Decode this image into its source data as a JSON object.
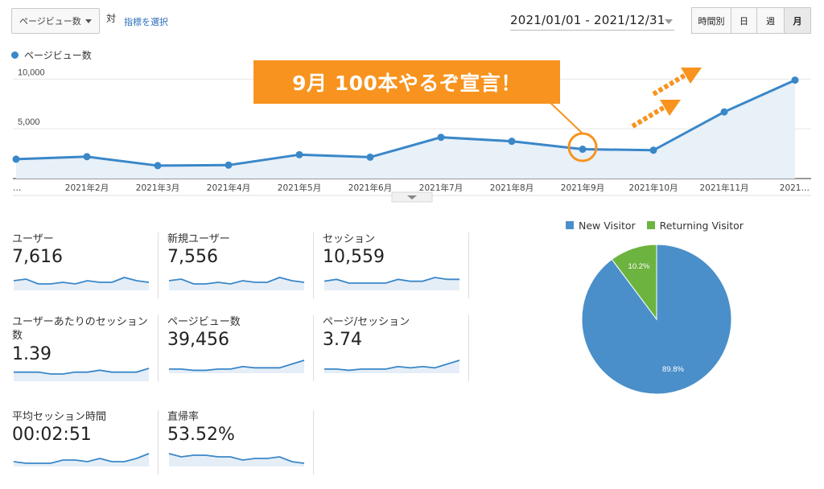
{
  "toolbar": {
    "metric_select": "ページビュー数",
    "vs_label": "対",
    "select_metric_link": "指標を選択",
    "date_range": "2021/01/01 - 2021/12/31",
    "granularity": [
      {
        "label": "時間別",
        "active": false
      },
      {
        "label": "日",
        "active": false
      },
      {
        "label": "週",
        "active": false
      },
      {
        "label": "月",
        "active": true
      }
    ]
  },
  "chart_legend": "ページビュー数",
  "annotation": "9月 100本やるぞ宣言！",
  "colors": {
    "line": "#3a87c8",
    "annotation_orange": "#f7931e",
    "new_visitor": "#4a8fc9",
    "returning_visitor": "#6db33f"
  },
  "chart_data": {
    "type": "line",
    "x": [
      "…",
      "2021年2月",
      "2021年3月",
      "2021年4月",
      "2021年5月",
      "2021年6月",
      "2021年7月",
      "2021年8月",
      "2021年9月",
      "2021年10月",
      "2021年11月",
      "2021…"
    ],
    "values": [
      1950,
      2200,
      1300,
      1350,
      2400,
      2150,
      4150,
      3750,
      2950,
      2850,
      6700,
      9900
    ],
    "yticks": [
      "10,000",
      "5,000"
    ],
    "ylim": [
      0,
      11000
    ],
    "grid": true
  },
  "cards": [
    {
      "title": "ユーザー",
      "value": "7,616",
      "spark": [
        5,
        6,
        3,
        3,
        4,
        3,
        5,
        4,
        4,
        7,
        5,
        4
      ]
    },
    {
      "title": "新規ユーザー",
      "value": "7,556",
      "spark": [
        5,
        6,
        3,
        3,
        4,
        3,
        5,
        4,
        4,
        7,
        5,
        4
      ]
    },
    {
      "title": "セッション",
      "value": "10,559",
      "spark": [
        4,
        5,
        3,
        3,
        3,
        3,
        5,
        4,
        4,
        6,
        5,
        5
      ]
    },
    {
      "title": "ユーザーあたりのセッション数",
      "value": "1.39",
      "spark": [
        4,
        4,
        4,
        3,
        3,
        4,
        4,
        5,
        4,
        4,
        4,
        6
      ]
    },
    {
      "title": "ページビュー数",
      "value": "39,456",
      "spark": [
        2,
        2,
        1,
        1,
        2,
        2,
        4,
        3,
        3,
        3,
        6,
        9
      ]
    },
    {
      "title": "ページ/セッション",
      "value": "3.74",
      "spark": [
        2,
        2,
        1,
        2,
        2,
        2,
        4,
        3,
        4,
        3,
        6,
        9
      ]
    },
    {
      "title": "平均セッション時間",
      "value": "00:02:51",
      "spark": [
        2,
        1,
        1,
        1,
        3,
        3,
        2,
        4,
        2,
        2,
        4,
        7
      ]
    },
    {
      "title": "直帰率",
      "value": "53.52%",
      "spark": [
        7,
        5,
        6,
        6,
        5,
        5,
        3,
        4,
        4,
        5,
        2,
        1
      ]
    }
  ],
  "pie": {
    "legend": [
      {
        "label": "New Visitor"
      },
      {
        "label": "Returning Visitor"
      }
    ],
    "slices": [
      {
        "label": "89.8%",
        "value": 89.8
      },
      {
        "label": "10.2%",
        "value": 10.2
      }
    ]
  }
}
